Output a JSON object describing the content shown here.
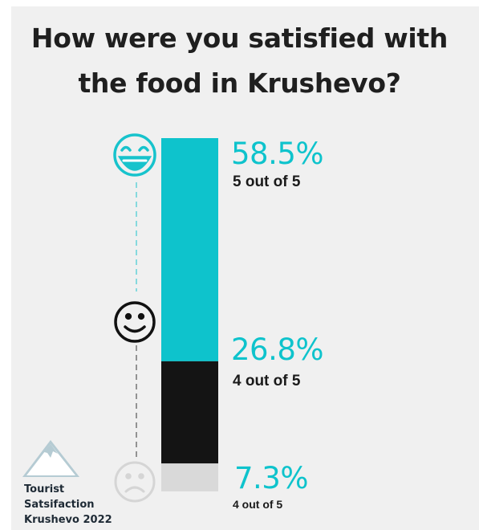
{
  "title_lines": [
    "How were you satisfied with",
    "the food in Krushevo?"
  ],
  "brand_lines": [
    "Tourist",
    "Satsifaction",
    "Krushevo 2022"
  ],
  "colors": {
    "accent": "#0ec3cc",
    "dark": "#141414",
    "light": "#d9d9d9",
    "background": "#f0f0f0",
    "mountain": "#b5cbd3"
  },
  "icons": [
    "laughing-face-icon",
    "smiling-face-icon",
    "frowning-face-icon",
    "mountain-logo-icon"
  ],
  "chart_data": {
    "type": "bar",
    "stacked": true,
    "orientation": "vertical",
    "categories": [
      "5 out of 5",
      "4 out of 5",
      "4 out of 5"
    ],
    "values": [
      58.5,
      26.8,
      7.3
    ],
    "value_labels": [
      "58.5%",
      "26.8%",
      "7.3%"
    ],
    "sublabels": [
      "5 out of 5",
      "4 out of 5",
      "4 out of 5"
    ],
    "segment_colors": [
      "#0ec3cc",
      "#141414",
      "#d9d9d9"
    ],
    "label_colors": [
      "#0ec3cc",
      "#0ec3cc",
      "#0ec3cc"
    ]
  }
}
